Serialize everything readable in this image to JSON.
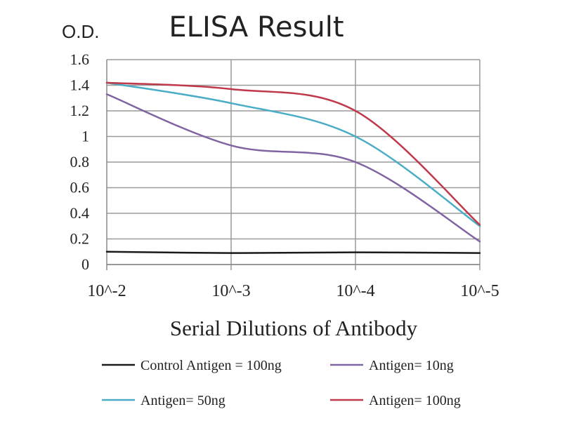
{
  "chart_data": {
    "type": "line",
    "title": "ELISA Result",
    "ylabel": "O.D.",
    "xlabel": "Serial Dilutions of Antibody",
    "categories": [
      "10^-2",
      "10^-3",
      "10^-4",
      "10^-5"
    ],
    "ylim": [
      0,
      1.6
    ],
    "yticks": [
      "0",
      "0.2",
      "0.4",
      "0.6",
      "0.8",
      "1",
      "1.2",
      "1.4",
      "1.6"
    ],
    "grid": true,
    "legend_position": "bottom",
    "series": [
      {
        "name": "Control Antigen = 100ng",
        "color": "#1a1a1a",
        "values": [
          0.1,
          0.09,
          0.095,
          0.09
        ]
      },
      {
        "name": "Antigen= 10ng",
        "color": "#8064a2",
        "values": [
          1.33,
          0.93,
          0.8,
          0.18
        ]
      },
      {
        "name": "Antigen= 50ng",
        "color": "#4bacc6",
        "values": [
          1.42,
          1.26,
          1.0,
          0.3
        ]
      },
      {
        "name": "Antigen= 100ng",
        "color": "#c0394a",
        "values": [
          1.42,
          1.37,
          1.2,
          0.31
        ]
      }
    ]
  }
}
